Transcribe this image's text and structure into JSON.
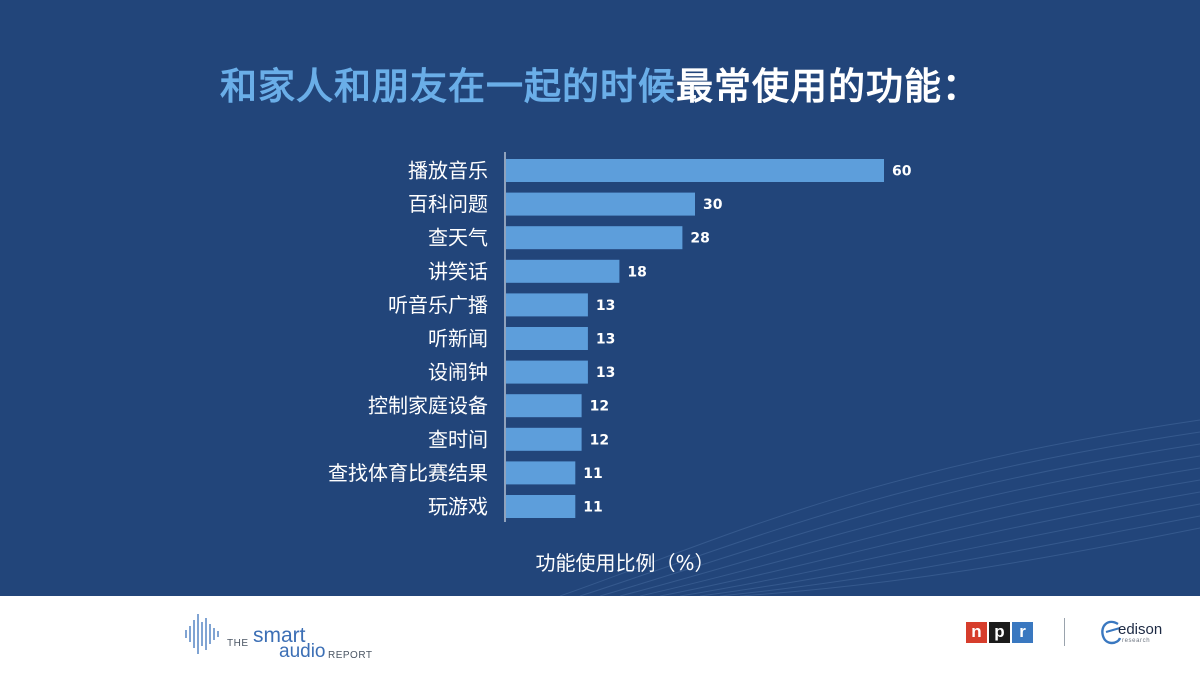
{
  "title": {
    "highlight": "和家人和朋友在一起的时候",
    "rest": "最常使用的功能："
  },
  "colors": {
    "background": "#22457a",
    "bar": "#5d9edb",
    "title_highlight": "#6aaee8",
    "text": "#ffffff"
  },
  "chart_data": {
    "type": "bar",
    "orientation": "horizontal",
    "categories": [
      "播放音乐",
      "百科问题",
      "查天气",
      "讲笑话",
      "听音乐广播",
      "听新闻",
      "设闹钟",
      "控制家庭设备",
      "查时间",
      "查找体育比赛结果",
      "玩游戏"
    ],
    "values": [
      60,
      30,
      28,
      18,
      13,
      13,
      13,
      12,
      12,
      11,
      11
    ],
    "xlabel": "功能使用比例（%）",
    "xlim": [
      0,
      60
    ],
    "grid": false,
    "legend": "none"
  },
  "footer": {
    "smart_audio": {
      "the": "THE",
      "smart": "smart",
      "audio": "audio",
      "report": "REPORT"
    },
    "npr": {
      "n": "n",
      "p": "p",
      "r": "r"
    },
    "edison": {
      "name": "edison",
      "sub": "research"
    }
  }
}
